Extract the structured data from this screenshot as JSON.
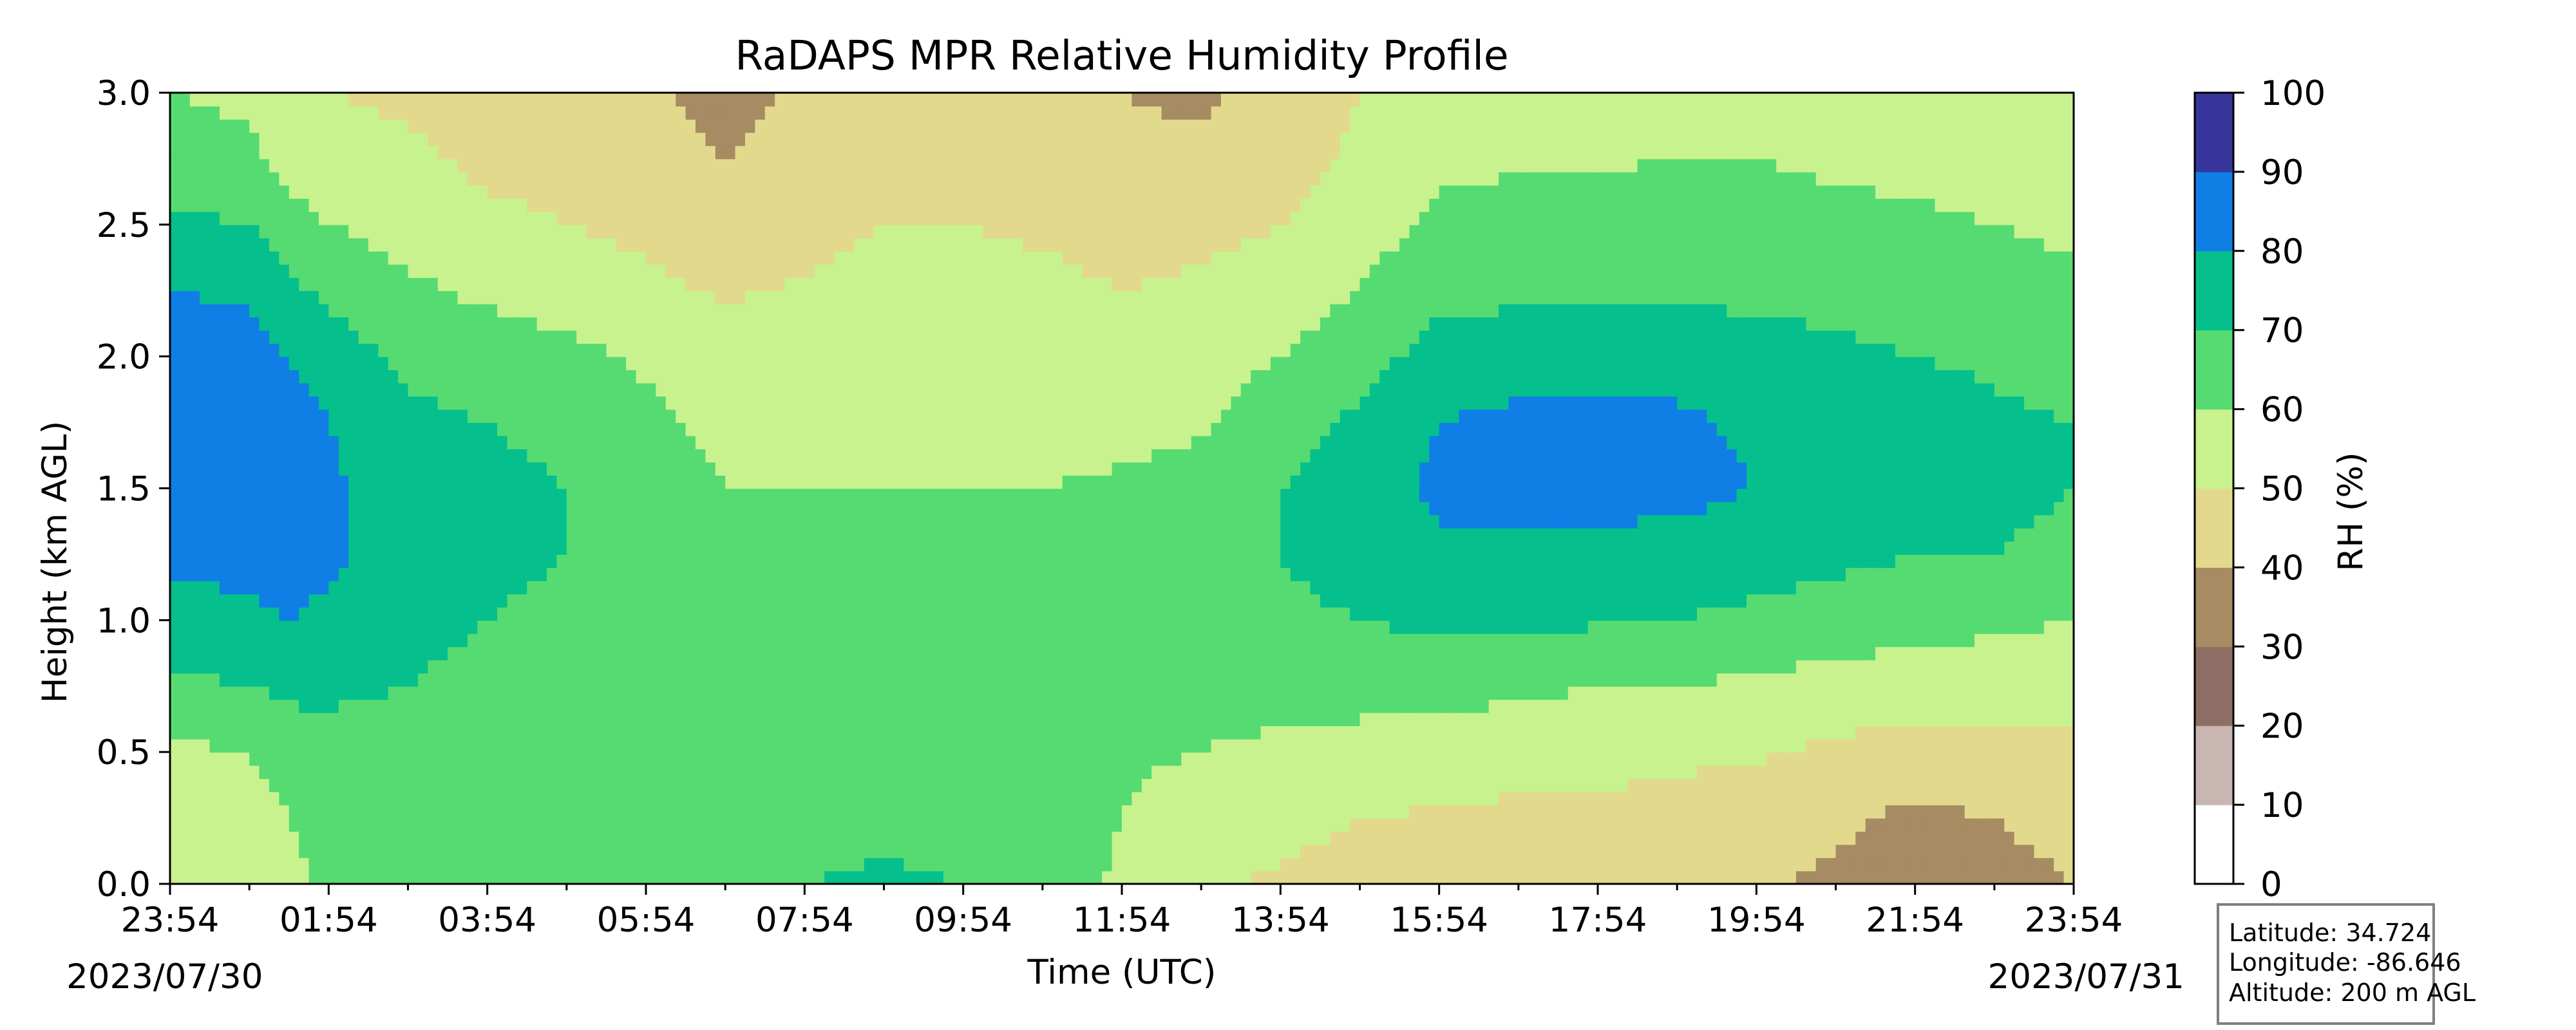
{
  "chart_data": {
    "type": "heatmap",
    "subtype": "filled-contour",
    "title": "RaDAPS MPR Relative Humidity Profile",
    "xlabel": "Time (UTC)",
    "ylabel": "Height (km AGL)",
    "x_ticks": [
      "23:54",
      "01:54",
      "03:54",
      "05:54",
      "07:54",
      "09:54",
      "11:54",
      "13:54",
      "15:54",
      "17:54",
      "19:54",
      "21:54",
      "23:54"
    ],
    "x_tick_hours": [
      0,
      2,
      4,
      6,
      8,
      10,
      12,
      14,
      16,
      18,
      20,
      22,
      24
    ],
    "x_range_hours": [
      0,
      24
    ],
    "start_date": "2023/07/30",
    "end_date": "2023/07/31",
    "y_ticks": [
      "0.0",
      "0.5",
      "1.0",
      "1.5",
      "2.0",
      "2.5",
      "3.0"
    ],
    "ylim": [
      0,
      3.0
    ],
    "colorbar": {
      "label": "RH (%)",
      "ticks": [
        "0",
        "10",
        "20",
        "30",
        "40",
        "50",
        "60",
        "70",
        "80",
        "90",
        "100"
      ],
      "levels": [
        0,
        10,
        20,
        30,
        40,
        50,
        60,
        70,
        80,
        90,
        100
      ],
      "colors": [
        "#ffffff",
        "#c9b5b1",
        "#8e6f65",
        "#a68b63",
        "#e2d98c",
        "#c8f28e",
        "#55db72",
        "#05bf8c",
        "#0f7fe6",
        "#36359c"
      ]
    },
    "rh_grid_time_hours": [
      0,
      1,
      1.5,
      2,
      3,
      4,
      5,
      6,
      7,
      8,
      9,
      10,
      11,
      12,
      13,
      14,
      15,
      16,
      17,
      18,
      19,
      20,
      21,
      22,
      23,
      24
    ],
    "rh_grid_heights_km": [
      0.0,
      0.25,
      0.5,
      0.75,
      1.0,
      1.25,
      1.5,
      1.75,
      2.0,
      2.25,
      2.5,
      2.75,
      3.0
    ],
    "rh_grid": [
      [
        55,
        55,
        58,
        68,
        75,
        82,
        85,
        88,
        86,
        80,
        72,
        65,
        60
      ],
      [
        56,
        56,
        60,
        70,
        78,
        84,
        86,
        87,
        85,
        78,
        70,
        62,
        58
      ],
      [
        58,
        60,
        65,
        72,
        80,
        84,
        85,
        84,
        80,
        72,
        64,
        56,
        52
      ],
      [
        62,
        63,
        66,
        72,
        78,
        82,
        82,
        80,
        75,
        68,
        60,
        54,
        50
      ],
      [
        62,
        64,
        66,
        70,
        72,
        74,
        74,
        72,
        68,
        62,
        56,
        52,
        48
      ],
      [
        60,
        62,
        64,
        68,
        70,
        72,
        72,
        70,
        66,
        58,
        52,
        48,
        46
      ],
      [
        60,
        62,
        64,
        66,
        68,
        70,
        70,
        68,
        63,
        55,
        50,
        47,
        45
      ],
      [
        62,
        63,
        64,
        65,
        66,
        66,
        65,
        63,
        58,
        52,
        48,
        45,
        42
      ],
      [
        68,
        66,
        65,
        64,
        63,
        62,
        60,
        57,
        54,
        49,
        45,
        40,
        36
      ],
      [
        70,
        66,
        64,
        63,
        62,
        62,
        60,
        57,
        55,
        51,
        47,
        44,
        42
      ],
      [
        72,
        67,
        64,
        63,
        62,
        62,
        60,
        57,
        56,
        54,
        50,
        45,
        44
      ],
      [
        70,
        66,
        63,
        62,
        61,
        61,
        60,
        57,
        56,
        54,
        50,
        46,
        45
      ],
      [
        68,
        64,
        62,
        61,
        61,
        61,
        60,
        58,
        56,
        53,
        48,
        45,
        44
      ],
      [
        58,
        60,
        61,
        61,
        62,
        62,
        61,
        58,
        55,
        50,
        46,
        42,
        40
      ],
      [
        52,
        56,
        60,
        62,
        64,
        64,
        63,
        59,
        56,
        52,
        47,
        43,
        38
      ],
      [
        48,
        54,
        58,
        64,
        68,
        70,
        70,
        65,
        60,
        55,
        50,
        46,
        44
      ],
      [
        45,
        50,
        56,
        64,
        70,
        74,
        76,
        72,
        66,
        60,
        56,
        52,
        50
      ],
      [
        45,
        49,
        55,
        63,
        72,
        78,
        82,
        80,
        74,
        67,
        62,
        58,
        55
      ],
      [
        44,
        48,
        54,
        62,
        72,
        78,
        84,
        82,
        76,
        68,
        63,
        59,
        56
      ],
      [
        43,
        48,
        53,
        60,
        71,
        77,
        84,
        82,
        77,
        68,
        64,
        59,
        56
      ],
      [
        42,
        46,
        52,
        60,
        70,
        76,
        83,
        82,
        76,
        68,
        64,
        60,
        57
      ],
      [
        41,
        45,
        51,
        58,
        68,
        74,
        80,
        78,
        74,
        68,
        64,
        60,
        57
      ],
      [
        38,
        42,
        48,
        56,
        66,
        72,
        78,
        76,
        72,
        67,
        63,
        58,
        56
      ],
      [
        36,
        38,
        46,
        54,
        64,
        70,
        76,
        76,
        70,
        66,
        62,
        57,
        55
      ],
      [
        38,
        40,
        47,
        54,
        62,
        70,
        72,
        72,
        68,
        64,
        60,
        56,
        54
      ],
      [
        40,
        42,
        47,
        53,
        60,
        68,
        70,
        70,
        66,
        62,
        58,
        55,
        52
      ]
    ]
  },
  "info_box": {
    "latitude": "Latitude: 34.724",
    "longitude": "Longitude: -86.646",
    "altitude": "Altitude: 200 m AGL"
  }
}
